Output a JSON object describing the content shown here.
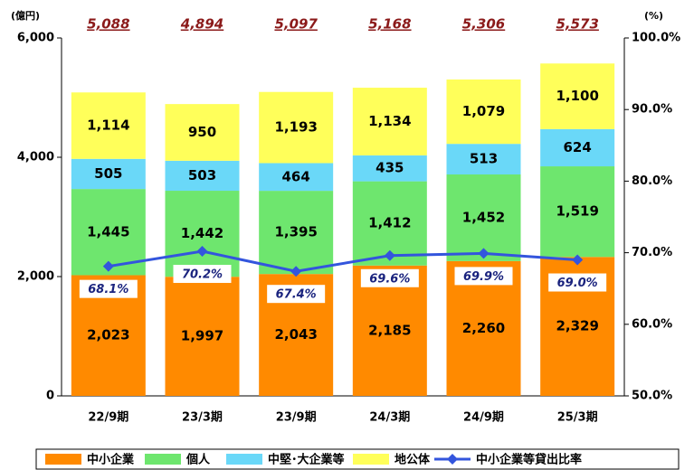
{
  "chart_data": {
    "type": "stacked_bar_line",
    "y_label": "(億円)",
    "y2_label": "(%)",
    "categories": [
      "22/9期",
      "23/3期",
      "23/9期",
      "24/3期",
      "24/9期",
      "25/3期"
    ],
    "series": [
      {
        "name": "中小企業",
        "color": "#ff8a00",
        "values": [
          2023,
          1997,
          2043,
          2185,
          2260,
          2329
        ],
        "value_labels": [
          "2,023",
          "1,997",
          "2,043",
          "2,185",
          "2,260",
          "2,329"
        ]
      },
      {
        "name": "個人",
        "color": "#6ee66e",
        "values": [
          1445,
          1442,
          1395,
          1412,
          1452,
          1519
        ],
        "value_labels": [
          "1,445",
          "1,442",
          "1,395",
          "1,412",
          "1,452",
          "1,519"
        ]
      },
      {
        "name": "中堅･大企業等",
        "color": "#6ad8f8",
        "values": [
          505,
          503,
          464,
          435,
          513,
          624
        ],
        "value_labels": [
          "505",
          "503",
          "464",
          "435",
          "513",
          "624"
        ]
      },
      {
        "name": "地公体",
        "color": "#ffff5a",
        "values": [
          1114,
          950,
          1193,
          1134,
          1079,
          1100
        ],
        "value_labels": [
          "1,114",
          "950",
          "1,193",
          "1,134",
          "1,079",
          "1,100"
        ]
      },
      {
        "name": "中小企業等貸出比率",
        "type": "line",
        "axis": "y2",
        "color": "#3355dd",
        "values": [
          68.1,
          70.2,
          67.4,
          69.6,
          69.9,
          69.0
        ],
        "value_labels": [
          "68.1%",
          "70.2%",
          "67.4%",
          "69.6%",
          "69.9%",
          "69.0%"
        ]
      }
    ],
    "totals": {
      "values": [
        5088,
        4894,
        5097,
        5168,
        5306,
        5573
      ],
      "value_labels": [
        "5,088",
        "4,894",
        "5,097",
        "5,168",
        "5,306",
        "5,573"
      ],
      "color": "#8b1a1a"
    },
    "ylim": [
      0,
      6000
    ],
    "yticks": [
      0,
      {
        "value": 2000,
        "label": "2,000"
      },
      {
        "value": 4000,
        "label": "4,000"
      },
      {
        "value": 6000,
        "label": "6,000"
      }
    ],
    "y2lim": [
      50,
      100
    ],
    "y2ticks": [
      {
        "value": 50,
        "label": "50.0%"
      },
      {
        "value": 60,
        "label": "60.0%"
      },
      {
        "value": 70,
        "label": "70.0%"
      },
      {
        "value": 80,
        "label": "80.0%"
      },
      {
        "value": 90,
        "label": "90.0%"
      },
      {
        "value": 100,
        "label": "100.0%"
      }
    ],
    "legend": "bottom"
  }
}
